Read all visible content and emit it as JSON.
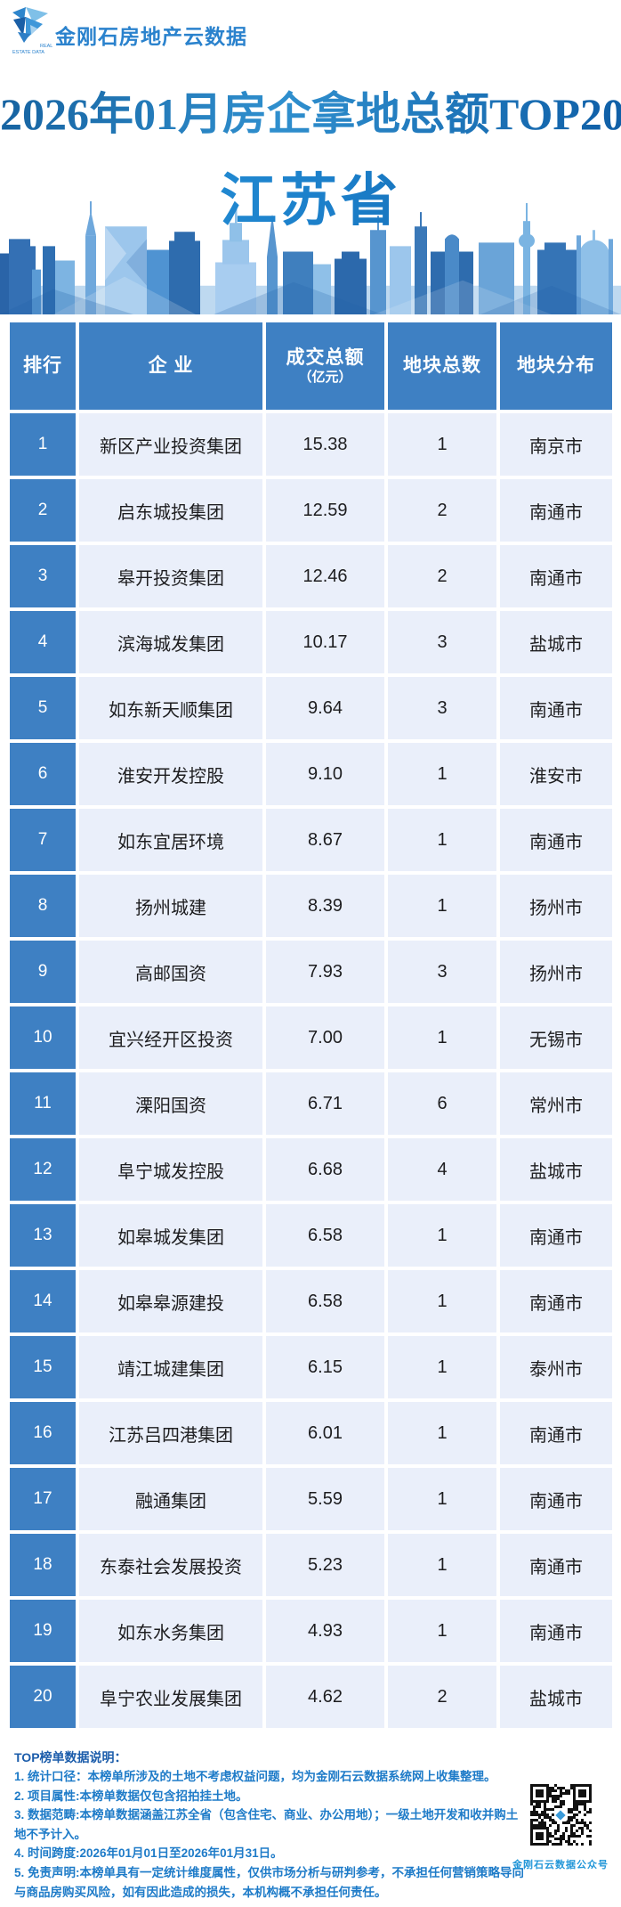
{
  "brand": {
    "logo_text": "金刚石房地产云数据",
    "logo_sub_line1": "REAL",
    "logo_sub_line2": "ESTATE DATA"
  },
  "title": "2026年01月房企拿地总额TOP20",
  "subtitle": "江苏省",
  "chart_data": {
    "type": "table",
    "title": "2026年01月房企拿地总额TOP20",
    "region": "江苏省",
    "columns": [
      "排行",
      "企 业",
      "成交总额",
      "地块总数",
      "地块分布"
    ],
    "amount_unit": "（亿元）",
    "rows": [
      {
        "rank": "1",
        "company": "新区产业投资集团",
        "amount": "15.38",
        "plots": "1",
        "city": "南京市"
      },
      {
        "rank": "2",
        "company": "启东城投集团",
        "amount": "12.59",
        "plots": "2",
        "city": "南通市"
      },
      {
        "rank": "3",
        "company": "皋开投资集团",
        "amount": "12.46",
        "plots": "2",
        "city": "南通市"
      },
      {
        "rank": "4",
        "company": "滨海城发集团",
        "amount": "10.17",
        "plots": "3",
        "city": "盐城市"
      },
      {
        "rank": "5",
        "company": "如东新天顺集团",
        "amount": "9.64",
        "plots": "3",
        "city": "南通市"
      },
      {
        "rank": "6",
        "company": "淮安开发控股",
        "amount": "9.10",
        "plots": "1",
        "city": "淮安市"
      },
      {
        "rank": "7",
        "company": "如东宜居环境",
        "amount": "8.67",
        "plots": "1",
        "city": "南通市"
      },
      {
        "rank": "8",
        "company": "扬州城建",
        "amount": "8.39",
        "plots": "1",
        "city": "扬州市"
      },
      {
        "rank": "9",
        "company": "高邮国资",
        "amount": "7.93",
        "plots": "3",
        "city": "扬州市"
      },
      {
        "rank": "10",
        "company": "宜兴经开区投资",
        "amount": "7.00",
        "plots": "1",
        "city": "无锡市"
      },
      {
        "rank": "11",
        "company": "溧阳国资",
        "amount": "6.71",
        "plots": "6",
        "city": "常州市"
      },
      {
        "rank": "12",
        "company": "阜宁城发控股",
        "amount": "6.68",
        "plots": "4",
        "city": "盐城市"
      },
      {
        "rank": "13",
        "company": "如皋城发集团",
        "amount": "6.58",
        "plots": "1",
        "city": "南通市"
      },
      {
        "rank": "14",
        "company": "如皋皋源建投",
        "amount": "6.58",
        "plots": "1",
        "city": "南通市"
      },
      {
        "rank": "15",
        "company": "靖江城建集团",
        "amount": "6.15",
        "plots": "1",
        "city": "泰州市"
      },
      {
        "rank": "16",
        "company": "江苏吕四港集团",
        "amount": "6.01",
        "plots": "1",
        "city": "南通市"
      },
      {
        "rank": "17",
        "company": "融通集团",
        "amount": "5.59",
        "plots": "1",
        "city": "南通市"
      },
      {
        "rank": "18",
        "company": "东泰社会发展投资",
        "amount": "5.23",
        "plots": "1",
        "city": "南通市"
      },
      {
        "rank": "19",
        "company": "如东水务集团",
        "amount": "4.93",
        "plots": "1",
        "city": "南通市"
      },
      {
        "rank": "20",
        "company": "阜宁农业发展集团",
        "amount": "4.62",
        "plots": "2",
        "city": "盐城市"
      }
    ]
  },
  "notes": {
    "heading": "TOP榜单数据说明：",
    "items": [
      "1. 统计口径：本榜单所涉及的土地不考虑权益问题，均为金刚石云数据系统网上收集整理。",
      "2. 项目属性:本榜单数据仅包含招拍挂土地。",
      "3. 数据范畴:本榜单数据涵盖江苏全省（包含住宅、商业、办公用地）；一级土地开发和收并购土地不予计入。",
      "4. 时间跨度:2026年01月01日至2026年01月31日。",
      "5. 免责声明:本榜单具有一定统计维度属性，仅供市场分析与研判参考，不承担任何营销策略导向与商品房购买风险，如有因此造成的损失，本机构概不承担任何责任。"
    ]
  },
  "qr": {
    "caption": "金刚石云数据公众号"
  },
  "colors": {
    "header_blue": "#3e80c3",
    "row_bg": "#eaeffa",
    "title_blue": "#15619f",
    "subtitle_blue": "#1b7ec9",
    "note_text": "#1e7bc8",
    "brand_blue": "#2a82cd",
    "qr_dark": "#111111"
  }
}
